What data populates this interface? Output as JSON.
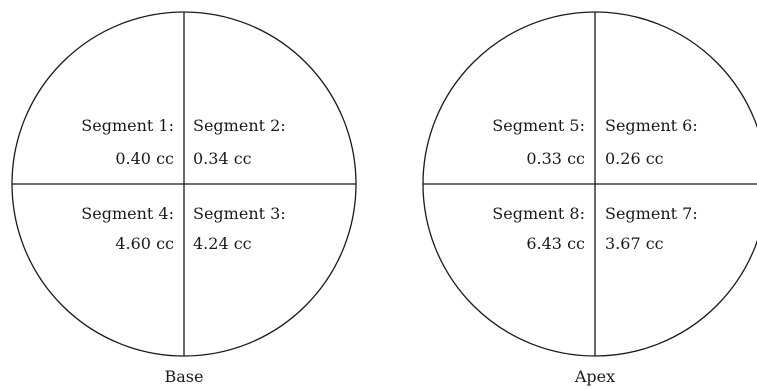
{
  "diagrams": [
    {
      "caption": "Base",
      "segments": [
        {
          "label": "Segment 1:",
          "value": "0.40 cc"
        },
        {
          "label": "Segment 2:",
          "value": "0.34 cc"
        },
        {
          "label": "Segment 4:",
          "value": "4.60 cc"
        },
        {
          "label": "Segment 3:",
          "value": "4.24 cc"
        }
      ]
    },
    {
      "caption": "Apex",
      "segments": [
        {
          "label": "Segment 5:",
          "value": "0.33 cc"
        },
        {
          "label": "Segment 6:",
          "value": "0.26 cc"
        },
        {
          "label": "Segment 8:",
          "value": "6.43 cc"
        },
        {
          "label": "Segment 7:",
          "value": "3.67 cc"
        }
      ]
    }
  ]
}
